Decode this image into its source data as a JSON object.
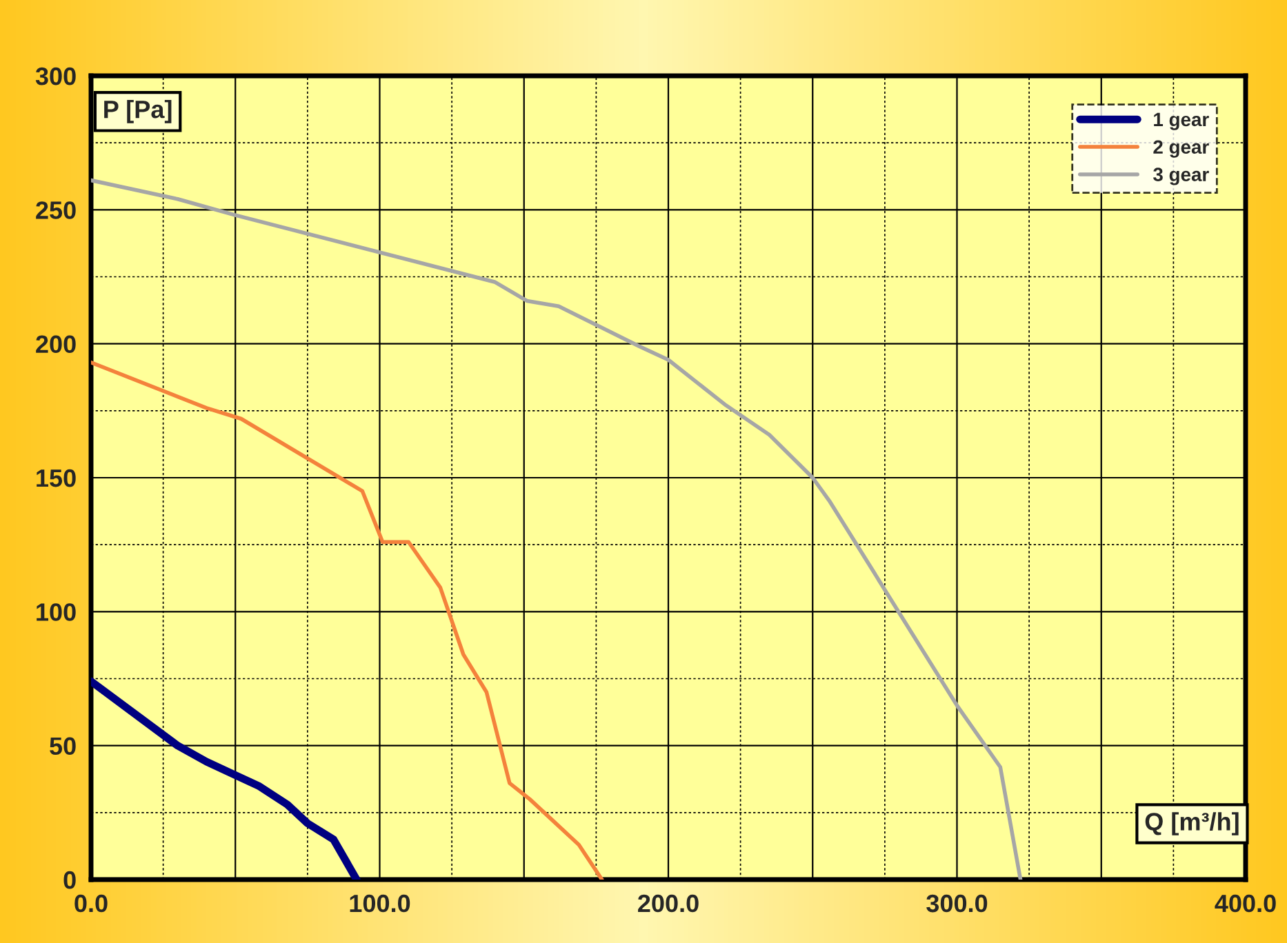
{
  "chart_data": {
    "type": "line",
    "xlabel": "Q [m³/h]",
    "ylabel": "P [Pa]",
    "xlim": [
      0,
      400
    ],
    "ylim": [
      0,
      300
    ],
    "xticks": [
      {
        "value": 0,
        "label": "0.0"
      },
      {
        "value": 50,
        "label": null
      },
      {
        "value": 100,
        "label": "100.0"
      },
      {
        "value": 150,
        "label": null
      },
      {
        "value": 200,
        "label": "200.0"
      },
      {
        "value": 250,
        "label": null
      },
      {
        "value": 300,
        "label": "300.0"
      },
      {
        "value": 350,
        "label": null
      },
      {
        "value": 400,
        "label": "400.0"
      }
    ],
    "yticks": [
      0,
      50,
      100,
      150,
      200,
      250,
      300
    ],
    "grid": true,
    "legend": "top right",
    "marker": "none",
    "line_style": "solid",
    "series": [
      {
        "name": "1 gear",
        "color": "#000080",
        "x": [
          0,
          30,
          40,
          50,
          58,
          68,
          75,
          84,
          92
        ],
        "values": [
          74,
          50,
          44,
          39,
          35,
          28,
          21,
          15,
          0
        ]
      },
      {
        "name": "2 gear",
        "color": "#f4823c",
        "x": [
          0,
          40,
          52,
          94,
          101,
          110,
          121,
          129,
          137,
          145,
          152,
          161,
          169,
          177
        ],
        "values": [
          193,
          176,
          172,
          145,
          126,
          126,
          109,
          84,
          70,
          36,
          30,
          21,
          13,
          0
        ]
      },
      {
        "name": "3 gear",
        "color": "#a6a6a6",
        "x": [
          0,
          30,
          50,
          140,
          151,
          162,
          190,
          200,
          220,
          235,
          250,
          256,
          300,
          315,
          322
        ],
        "values": [
          261,
          254,
          248,
          223,
          216,
          214,
          199,
          194,
          177,
          166,
          150,
          141,
          65,
          42,
          0
        ]
      }
    ]
  }
}
